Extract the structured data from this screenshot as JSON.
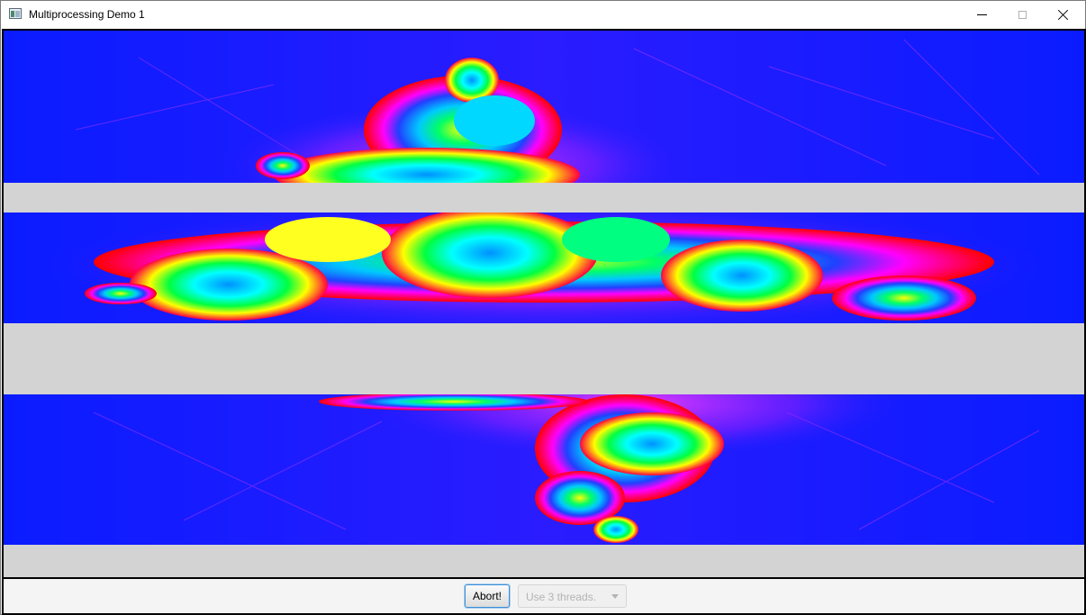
{
  "window": {
    "title": "Multiprocessing Demo 1",
    "icon": "app-window-icon",
    "controls": [
      "minimize-icon",
      "maximize-icon",
      "close-icon"
    ]
  },
  "canvas": {
    "background_color": "#d3d3d3",
    "fractal_palette": [
      "#0000ff",
      "#8000ff",
      "#ff00ff",
      "#ff0000",
      "#ffff00",
      "#00ff00",
      "#00ffff",
      "#0080ff"
    ],
    "rendered_bands": 3,
    "unrendered_bands": 3
  },
  "controls": {
    "abort_label": "Abort!",
    "threads_select": {
      "value": "Use 3 threads.",
      "enabled": false
    }
  },
  "colors": {
    "accent_focus": "#3c8ed6",
    "disabled_text": "#b3b3b3"
  }
}
